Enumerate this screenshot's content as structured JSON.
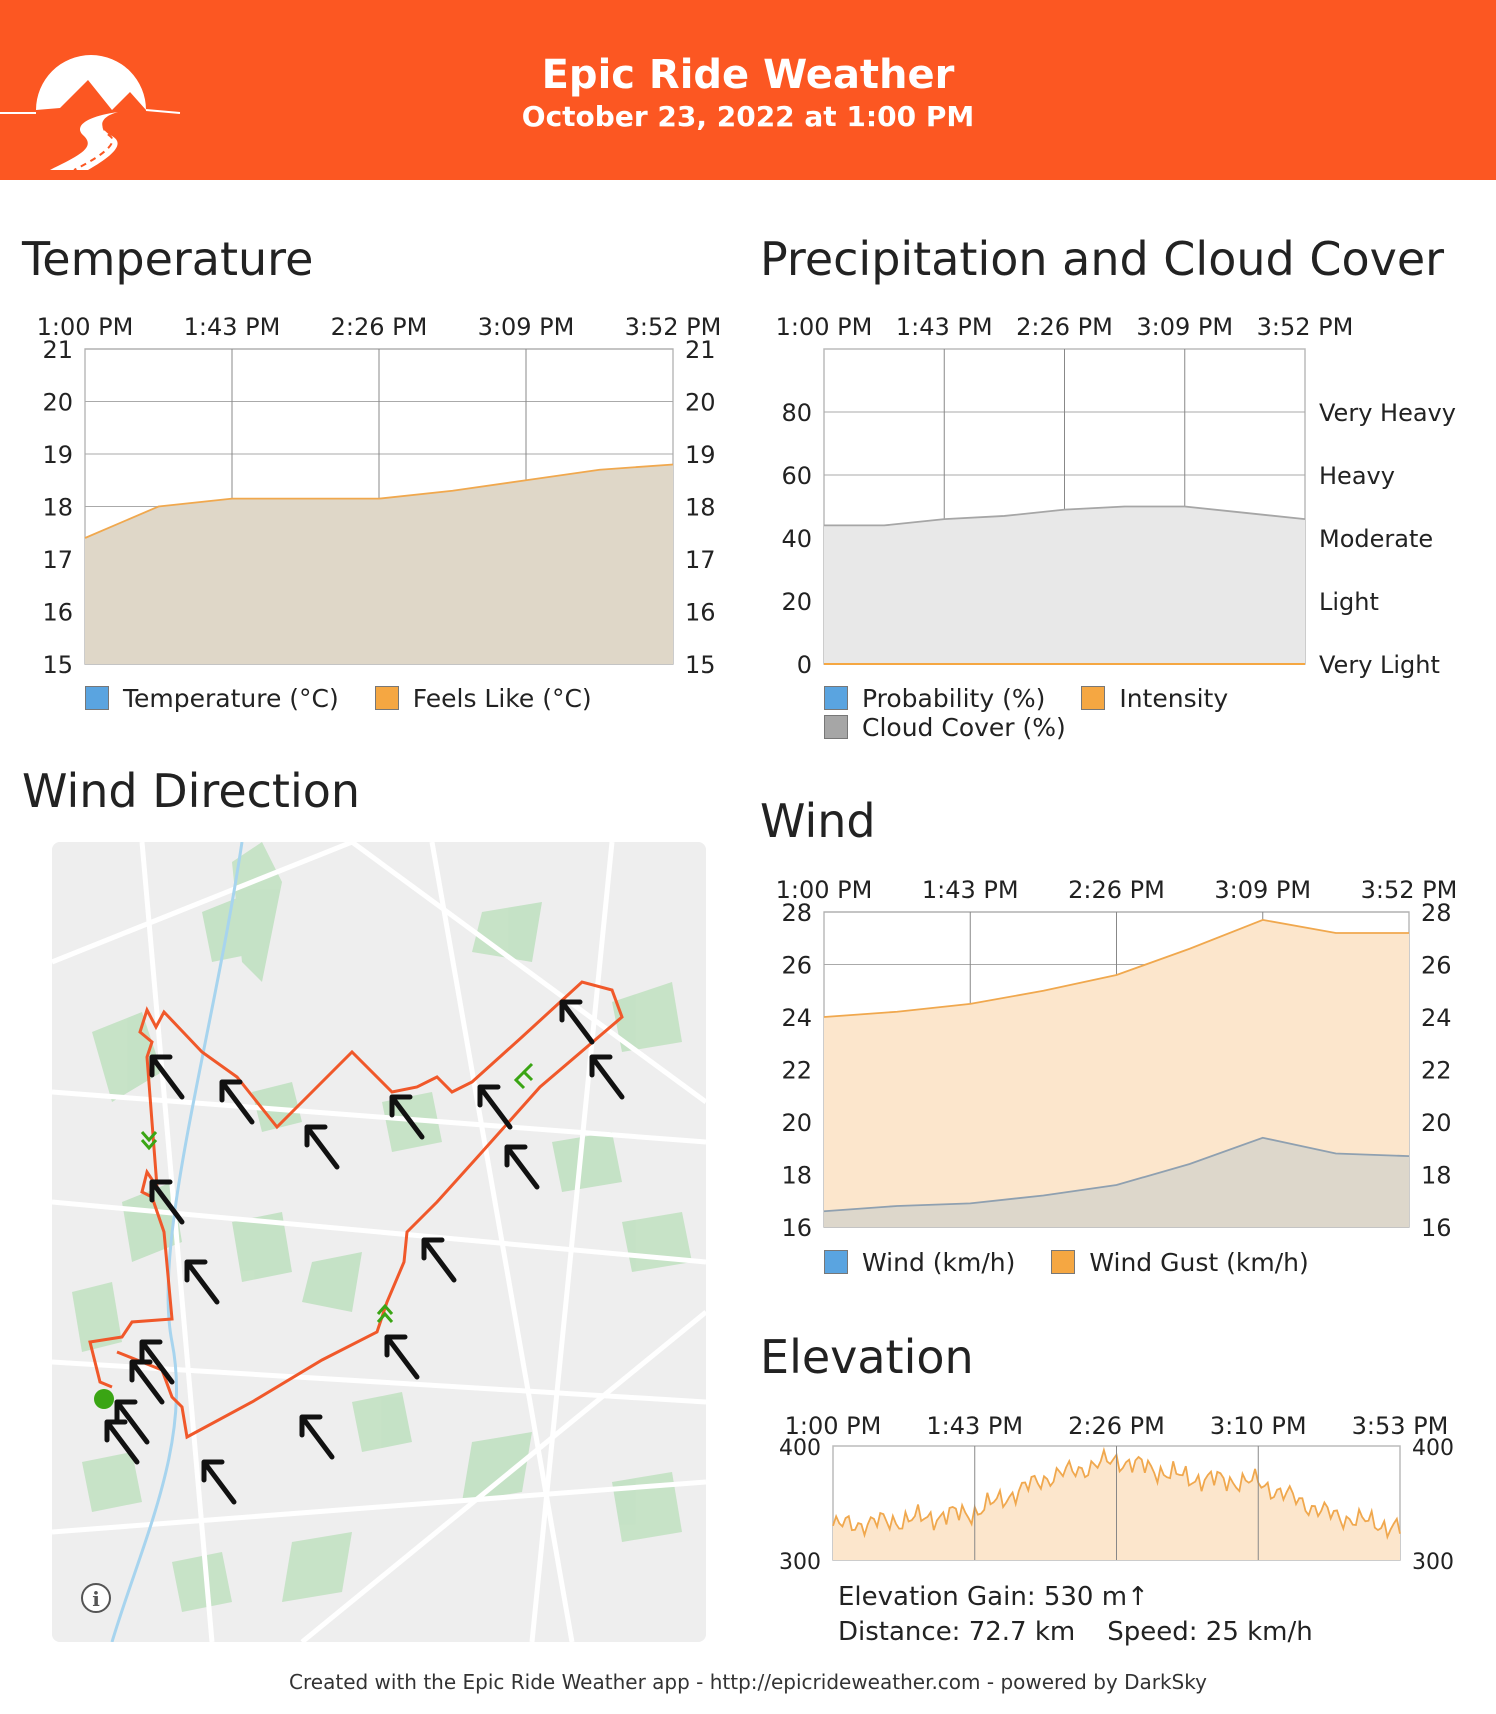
{
  "header": {
    "title": "Epic Ride Weather",
    "subtitle": "October 23, 2022 at 1:00 PM",
    "background": "#fc5722"
  },
  "temperature": {
    "title": "Temperature",
    "time_labels": [
      "1:00 PM",
      "1:43 PM",
      "2:26 PM",
      "3:09 PM",
      "3:52 PM"
    ],
    "legend": [
      {
        "label": "Temperature (°C)",
        "color": "#5aa4e0"
      },
      {
        "label": "Feels Like (°C)",
        "color": "#f5a742"
      }
    ]
  },
  "precip": {
    "title": "Precipitation and Cloud Cover",
    "time_labels": [
      "1:00 PM",
      "1:43 PM",
      "2:26 PM",
      "3:09 PM",
      "3:52 PM"
    ],
    "legend": [
      {
        "label": "Probability (%)",
        "color": "#5aa4e0"
      },
      {
        "label": "Intensity",
        "color": "#f5a742"
      },
      {
        "label": "Cloud Cover (%)",
        "color": "#a6a6a6"
      }
    ]
  },
  "wind_direction": {
    "title": "Wind Direction",
    "info_icon": "info-icon",
    "route_color": "#f0582a",
    "start_marker_color": "#3aa514"
  },
  "wind": {
    "title": "Wind",
    "time_labels": [
      "1:00 PM",
      "1:43 PM",
      "2:26 PM",
      "3:09 PM",
      "3:52 PM"
    ],
    "legend": [
      {
        "label": "Wind (km/h)",
        "color": "#5aa4e0"
      },
      {
        "label": "Wind Gust (km/h)",
        "color": "#f5a742"
      }
    ]
  },
  "elevation": {
    "title": "Elevation",
    "time_labels": [
      "1:00 PM",
      "1:43 PM",
      "2:26 PM",
      "3:10 PM",
      "3:53 PM"
    ],
    "gain_label": "Elevation Gain: 530 m↑",
    "distance_label": "Distance: 72.7 km",
    "speed_label": "Speed: 25 km/h"
  },
  "footer": "Created with the Epic Ride Weather app - http://epicrideweather.com - powered by DarkSky",
  "chart_data": [
    {
      "type": "area",
      "title": "Temperature",
      "x": [
        "1:00 PM",
        "1:21 PM",
        "1:43 PM",
        "2:04 PM",
        "2:26 PM",
        "2:47 PM",
        "3:09 PM",
        "3:30 PM",
        "3:52 PM"
      ],
      "series": [
        {
          "name": "Temperature (°C)",
          "values": [
            17.4,
            18.0,
            18.15,
            18.15,
            18.15,
            18.3,
            18.5,
            18.7,
            18.8
          ]
        },
        {
          "name": "Feels Like (°C)",
          "values": [
            17.4,
            18.0,
            18.15,
            18.15,
            18.15,
            18.3,
            18.5,
            18.7,
            18.8
          ]
        }
      ],
      "ylim": [
        15,
        21
      ],
      "yticks": [
        15,
        16,
        17,
        18,
        19,
        20,
        21
      ]
    },
    {
      "type": "area",
      "title": "Precipitation and Cloud Cover",
      "x": [
        "1:00 PM",
        "1:21 PM",
        "1:43 PM",
        "2:04 PM",
        "2:26 PM",
        "2:47 PM",
        "3:09 PM",
        "3:30 PM",
        "3:52 PM"
      ],
      "series": [
        {
          "name": "Probability (%)",
          "values": [
            0,
            0,
            0,
            0,
            0,
            0,
            0,
            0,
            0
          ]
        },
        {
          "name": "Intensity",
          "values": [
            0,
            0,
            0,
            0,
            0,
            0,
            0,
            0,
            0
          ]
        },
        {
          "name": "Cloud Cover (%)",
          "values": [
            44,
            44,
            46,
            47,
            49,
            50,
            50,
            48,
            46
          ]
        }
      ],
      "ylim": [
        0,
        100
      ],
      "yticks": [
        0,
        20,
        40,
        60,
        80
      ],
      "right_labels": [
        "Very Light",
        "Light",
        "Moderate",
        "Heavy",
        "Very Heavy"
      ]
    },
    {
      "type": "area",
      "title": "Wind",
      "x": [
        "1:00 PM",
        "1:21 PM",
        "1:43 PM",
        "2:04 PM",
        "2:26 PM",
        "2:47 PM",
        "3:09 PM",
        "3:30 PM",
        "3:52 PM"
      ],
      "series": [
        {
          "name": "Wind (km/h)",
          "values": [
            16.6,
            16.8,
            16.9,
            17.2,
            17.6,
            18.4,
            19.4,
            18.8,
            18.7
          ]
        },
        {
          "name": "Wind Gust (km/h)",
          "values": [
            24.0,
            24.2,
            24.5,
            25.0,
            25.6,
            26.6,
            27.7,
            27.2,
            27.2
          ]
        }
      ],
      "ylim": [
        16,
        28
      ],
      "yticks": [
        16,
        18,
        20,
        22,
        24,
        26,
        28
      ]
    },
    {
      "type": "area",
      "title": "Elevation",
      "x": [
        "1:00 PM",
        "1:21 PM",
        "1:43 PM",
        "2:05 PM",
        "2:26 PM",
        "2:48 PM",
        "3:10 PM",
        "3:31 PM",
        "3:53 PM"
      ],
      "series": [
        {
          "name": "Elevation (m)",
          "values": [
            330,
            335,
            342,
            372,
            388,
            372,
            368,
            340,
            328
          ]
        }
      ],
      "ylim": [
        300,
        400
      ],
      "yticks": [
        300,
        400
      ]
    }
  ]
}
